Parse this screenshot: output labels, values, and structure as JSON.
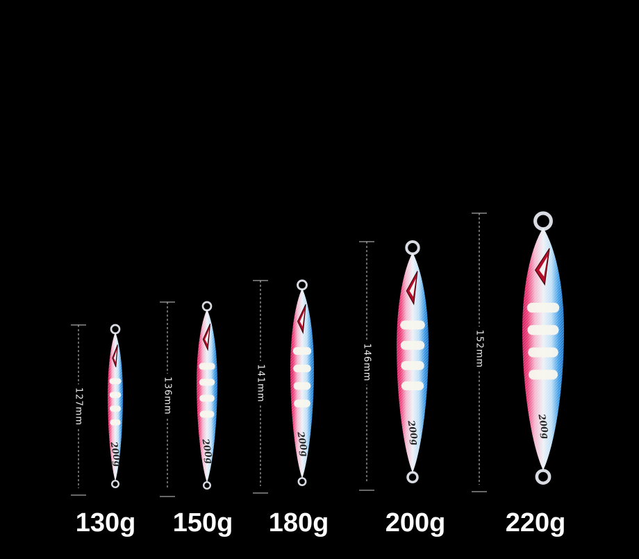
{
  "colors": {
    "background": "#000000",
    "edge_pink": "#e8306e",
    "edge_blue": "#2e8fe0",
    "body_silver": "#e9ecf2",
    "glow_stripe": "#f7f7ee",
    "eye_red": "#c8102e"
  },
  "jigs": [
    {
      "weight_label": "130g",
      "length_label": "127mm",
      "stamp": "200g",
      "icon": "fishing-jig-icon"
    },
    {
      "weight_label": "150g",
      "length_label": "136mm",
      "stamp": "200g",
      "icon": "fishing-jig-icon"
    },
    {
      "weight_label": "180g",
      "length_label": "141mm",
      "stamp": "200g",
      "icon": "fishing-jig-icon"
    },
    {
      "weight_label": "200g",
      "length_label": "146mm",
      "stamp": "200g",
      "icon": "fishing-jig-icon"
    },
    {
      "weight_label": "220g",
      "length_label": "152mm",
      "stamp": "200g",
      "icon": "fishing-jig-icon"
    }
  ]
}
